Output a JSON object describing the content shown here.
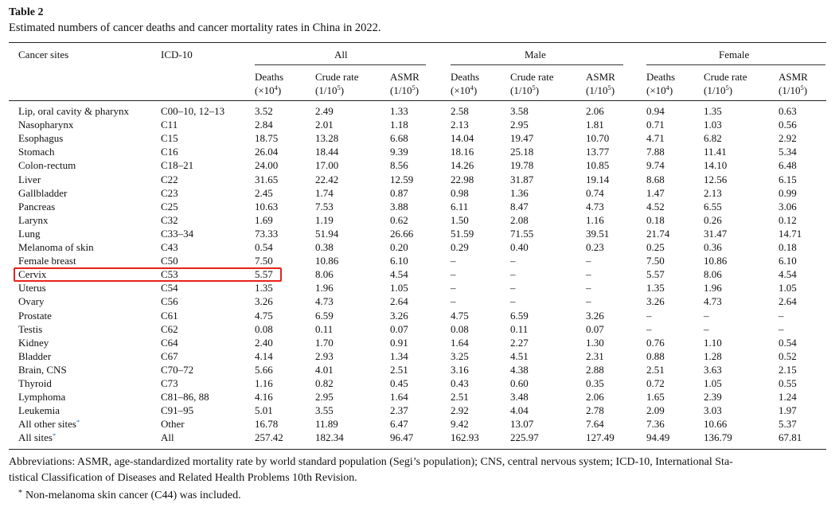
{
  "caption": {
    "label": "Table 2",
    "text": "Estimated numbers of cancer deaths and cancer mortality rates in China in 2022."
  },
  "header": {
    "cancer_sites": "Cancer sites",
    "icd": "ICD-10",
    "groups": [
      "All",
      "Male",
      "Female"
    ],
    "sub": {
      "deaths_top": "Deaths",
      "deaths_bottom_base": "(×10",
      "deaths_bottom_exp": "4",
      "deaths_bottom_close": ")",
      "crude_top": "Crude rate",
      "crude_bottom_base": "(1/10",
      "crude_bottom_exp": "5",
      "crude_bottom_close": ")",
      "asmr_top": "ASMR",
      "asmr_bottom_base": "(1/10",
      "asmr_bottom_exp": "5",
      "asmr_bottom_close": ")"
    }
  },
  "rows": [
    {
      "site": "Lip, oral cavity & pharynx",
      "icd": "C00–10, 12–13",
      "v": [
        "3.52",
        "2.49",
        "1.33",
        "2.58",
        "3.58",
        "2.06",
        "0.94",
        "1.35",
        "0.63"
      ]
    },
    {
      "site": "Nasopharynx",
      "icd": "C11",
      "v": [
        "2.84",
        "2.01",
        "1.18",
        "2.13",
        "2.95",
        "1.81",
        "0.71",
        "1.03",
        "0.56"
      ]
    },
    {
      "site": "Esophagus",
      "icd": "C15",
      "v": [
        "18.75",
        "13.28",
        "6.68",
        "14.04",
        "19.47",
        "10.70",
        "4.71",
        "6.82",
        "2.92"
      ]
    },
    {
      "site": "Stomach",
      "icd": "C16",
      "v": [
        "26.04",
        "18.44",
        "9.39",
        "18.16",
        "25.18",
        "13.77",
        "7.88",
        "11.41",
        "5.34"
      ]
    },
    {
      "site": "Colon-rectum",
      "icd": "C18–21",
      "v": [
        "24.00",
        "17.00",
        "8.56",
        "14.26",
        "19.78",
        "10.85",
        "9.74",
        "14.10",
        "6.48"
      ]
    },
    {
      "site": "Liver",
      "icd": "C22",
      "v": [
        "31.65",
        "22.42",
        "12.59",
        "22.98",
        "31.87",
        "19.14",
        "8.68",
        "12.56",
        "6.15"
      ]
    },
    {
      "site": "Gallbladder",
      "icd": "C23",
      "v": [
        "2.45",
        "1.74",
        "0.87",
        "0.98",
        "1.36",
        "0.74",
        "1.47",
        "2.13",
        "0.99"
      ]
    },
    {
      "site": "Pancreas",
      "icd": "C25",
      "v": [
        "10.63",
        "7.53",
        "3.88",
        "6.11",
        "8.47",
        "4.73",
        "4.52",
        "6.55",
        "3.06"
      ]
    },
    {
      "site": "Larynx",
      "icd": "C32",
      "v": [
        "1.69",
        "1.19",
        "0.62",
        "1.50",
        "2.08",
        "1.16",
        "0.18",
        "0.26",
        "0.12"
      ]
    },
    {
      "site": "Lung",
      "icd": "C33–34",
      "v": [
        "73.33",
        "51.94",
        "26.66",
        "51.59",
        "71.55",
        "39.51",
        "21.74",
        "31.47",
        "14.71"
      ]
    },
    {
      "site": "Melanoma of skin",
      "icd": "C43",
      "v": [
        "0.54",
        "0.38",
        "0.20",
        "0.29",
        "0.40",
        "0.23",
        "0.25",
        "0.36",
        "0.18"
      ]
    },
    {
      "site": "Female breast",
      "icd": "C50",
      "v": [
        "7.50",
        "10.86",
        "6.10",
        "–",
        "–",
        "–",
        "7.50",
        "10.86",
        "6.10"
      ]
    },
    {
      "site": "Cervix",
      "icd": "C53",
      "v": [
        "5.57",
        "8.06",
        "4.54",
        "–",
        "–",
        "–",
        "5.57",
        "8.06",
        "4.54"
      ]
    },
    {
      "site": "Uterus",
      "icd": "C54",
      "v": [
        "1.35",
        "1.96",
        "1.05",
        "–",
        "–",
        "–",
        "1.35",
        "1.96",
        "1.05"
      ]
    },
    {
      "site": "Ovary",
      "icd": "C56",
      "v": [
        "3.26",
        "4.73",
        "2.64",
        "–",
        "–",
        "–",
        "3.26",
        "4.73",
        "2.64"
      ]
    },
    {
      "site": "Prostate",
      "icd": "C61",
      "v": [
        "4.75",
        "6.59",
        "3.26",
        "4.75",
        "6.59",
        "3.26",
        "–",
        "–",
        "–"
      ]
    },
    {
      "site": "Testis",
      "icd": "C62",
      "v": [
        "0.08",
        "0.11",
        "0.07",
        "0.08",
        "0.11",
        "0.07",
        "–",
        "–",
        "–"
      ]
    },
    {
      "site": "Kidney",
      "icd": "C64",
      "v": [
        "2.40",
        "1.70",
        "0.91",
        "1.64",
        "2.27",
        "1.30",
        "0.76",
        "1.10",
        "0.54"
      ]
    },
    {
      "site": "Bladder",
      "icd": "C67",
      "v": [
        "4.14",
        "2.93",
        "1.34",
        "3.25",
        "4.51",
        "2.31",
        "0.88",
        "1.28",
        "0.52"
      ]
    },
    {
      "site": "Brain, CNS",
      "icd": "C70–72",
      "v": [
        "5.66",
        "4.01",
        "2.51",
        "3.16",
        "4.38",
        "2.88",
        "2.51",
        "3.63",
        "2.15"
      ]
    },
    {
      "site": "Thyroid",
      "icd": "C73",
      "v": [
        "1.16",
        "0.82",
        "0.45",
        "0.43",
        "0.60",
        "0.35",
        "0.72",
        "1.05",
        "0.55"
      ]
    },
    {
      "site": "Lymphoma",
      "icd": "C81–86, 88",
      "v": [
        "4.16",
        "2.95",
        "1.64",
        "2.51",
        "3.48",
        "2.06",
        "1.65",
        "2.39",
        "1.24"
      ]
    },
    {
      "site": "Leukemia",
      "icd": "C91–95",
      "v": [
        "5.01",
        "3.55",
        "2.37",
        "2.92",
        "4.04",
        "2.78",
        "2.09",
        "3.03",
        "1.97"
      ]
    },
    {
      "site": "All other sites",
      "site_mark": "*",
      "icd": "Other",
      "v": [
        "16.78",
        "11.89",
        "6.47",
        "9.42",
        "13.07",
        "7.64",
        "7.36",
        "10.66",
        "5.37"
      ]
    },
    {
      "site": "All sites",
      "site_mark": "*",
      "icd": "All",
      "v": [
        "257.42",
        "182.34",
        "96.47",
        "162.93",
        "225.97",
        "127.49",
        "94.49",
        "136.79",
        "67.81"
      ]
    }
  ],
  "highlight": {
    "row_site": "Cervix",
    "color": "#e8221b"
  },
  "footer": {
    "abbrev_line1": "Abbreviations: ASMR, age-standardized mortality rate by world standard population (Segi’s population); CNS, central nervous system; ICD-10, International Sta-",
    "abbrev_line2": "tistical Classification of Diseases and Related Health Problems 10th Revision.",
    "note_mark": "*",
    "note_text": "Non-melanoma skin cancer (C44) was included."
  }
}
